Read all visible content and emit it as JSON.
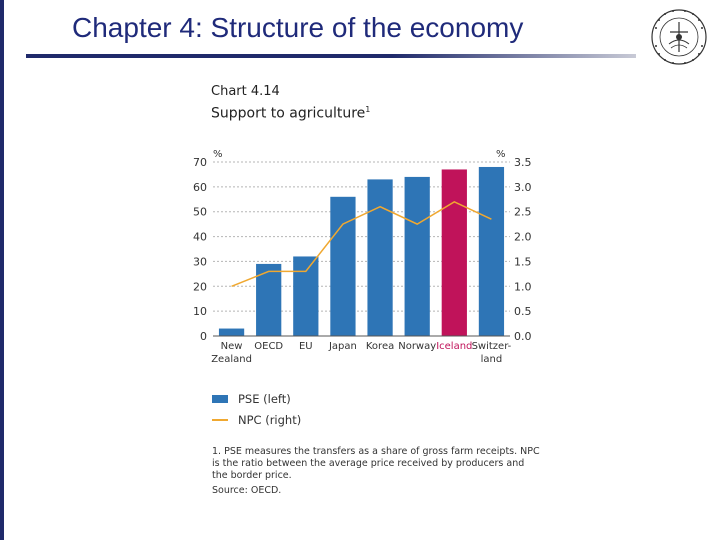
{
  "slide": {
    "title": "Chapter 4: Structure of the economy"
  },
  "chart_data": {
    "type": "bar",
    "label": "Chart 4.14",
    "title": "Support to agriculture",
    "title_footnote_mark": "1",
    "categories": [
      "New Zealand",
      "OECD",
      "EU",
      "Japan",
      "Korea",
      "Norway",
      "Iceland",
      "Switzer-land"
    ],
    "category_lines": [
      [
        "New",
        "Zealand"
      ],
      [
        "OECD"
      ],
      [
        "EU"
      ],
      [
        "Japan"
      ],
      [
        "Korea"
      ],
      [
        "Norway"
      ],
      [
        "Iceland"
      ],
      [
        "Switzer-",
        "land"
      ]
    ],
    "highlight_category": "Iceland",
    "series": [
      {
        "name": "PSE (left)",
        "kind": "bar",
        "axis": "left",
        "color": "#2e75b6",
        "values": [
          3,
          29,
          32,
          56,
          63,
          64,
          67,
          68
        ]
      },
      {
        "name": "NPC (right)",
        "kind": "line",
        "axis": "right",
        "color": "#f0a830",
        "values": [
          1.0,
          1.3,
          1.3,
          2.25,
          2.6,
          2.25,
          2.7,
          2.35
        ]
      }
    ],
    "left_axis": {
      "unit": "%",
      "min": 0,
      "max": 70,
      "ticks": [
        "0",
        "10",
        "20",
        "30",
        "40",
        "50",
        "60",
        "70"
      ]
    },
    "right_axis": {
      "unit": "%",
      "min": 0,
      "max": 3.5,
      "ticks": [
        "0.0",
        "0.5",
        "1.0",
        "1.5",
        "2.0",
        "2.5",
        "3.0",
        "3.5"
      ]
    },
    "highlight_color": "#c0135a",
    "grid": true,
    "legend_position": "bottom-left",
    "footnote": "1.  PSE measures the transfers as a share of gross farm receipts. NPC is the ratio between the average price received by producers and the border price.",
    "source": "Source: OECD."
  }
}
